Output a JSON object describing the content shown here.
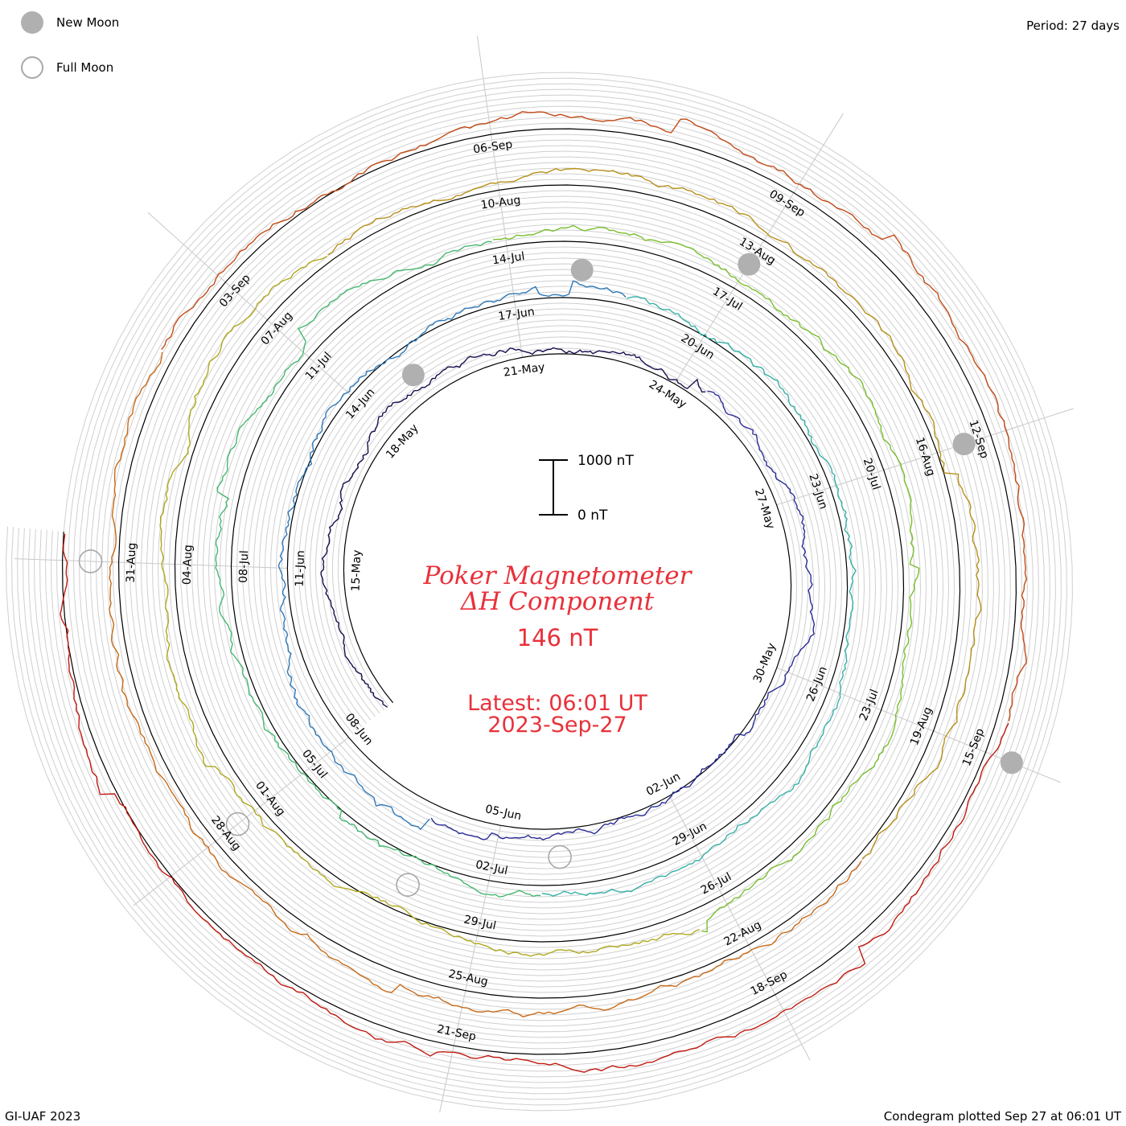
{
  "legend": {
    "new_moon_label": "New Moon",
    "full_moon_label": "Full Moon",
    "new_moon_color": "#b0b0b0",
    "full_moon_color": "#a8a8a8"
  },
  "period_label": "Period: 27 days",
  "title": {
    "line1": "Poker Magnetometer",
    "line2": "ΔH Component",
    "value": "146 nT",
    "latest": "Latest: 06:01 UT",
    "date": "2023-Sep-27",
    "color": "#e8313b"
  },
  "scale_bar": {
    "top_label": "1000 nT",
    "bottom_label": "0 nT"
  },
  "footer": {
    "left": "GI-UAF 2023",
    "right": "Condegram plotted Sep 27 at 06:01 UT"
  },
  "chart_data": {
    "type": "line",
    "subtype": "condegram spiral (one revolution per 27 days, clockwise)",
    "period_days": 27,
    "units": "nT",
    "start_date": "2023-May-12",
    "end": "2023-Sep-27 06:01 UT",
    "current_value_nT": 146,
    "series": [
      {
        "color": "#1a0f50",
        "start": "2023-May-12"
      },
      {
        "color": "#2b2d96",
        "start": "2023-Jun-08"
      },
      {
        "color": "#2f78b8",
        "start": "2023-Jul-05"
      },
      {
        "color": "#36b0a8",
        "start": "2023-Aug-01"
      },
      {
        "color": "#79be2e",
        "start": "2023-Aug-28"
      },
      {
        "color": "#b0a81e",
        "start": "2023-Sep-24"
      }
    ],
    "segment_colors": [
      "#1a0f50",
      "#2b2d96",
      "#2f78b8",
      "#36b0a8",
      "#46b870",
      "#79be2e",
      "#b0a81e",
      "#b8901a",
      "#c86a18",
      "#c24a16",
      "#c01a10"
    ],
    "date_labels": [
      {
        "date": "15-May",
        "day": 3
      },
      {
        "date": "18-May",
        "day": 6
      },
      {
        "date": "21-May",
        "day": 9
      },
      {
        "date": "24-May",
        "day": 12
      },
      {
        "date": "27-May",
        "day": 15
      },
      {
        "date": "30-May",
        "day": 18
      },
      {
        "date": "02-Jun",
        "day": 21
      },
      {
        "date": "05-Jun",
        "day": 24
      },
      {
        "date": "08-Jun",
        "day": 27
      },
      {
        "date": "11-Jun",
        "day": 30
      },
      {
        "date": "14-Jun",
        "day": 33
      },
      {
        "date": "17-Jun",
        "day": 36
      },
      {
        "date": "20-Jun",
        "day": 39
      },
      {
        "date": "23-Jun",
        "day": 42
      },
      {
        "date": "26-Jun",
        "day": 45
      },
      {
        "date": "29-Jun",
        "day": 48
      },
      {
        "date": "02-Jul",
        "day": 51
      },
      {
        "date": "05-Jul",
        "day": 54
      },
      {
        "date": "08-Jul",
        "day": 57
      },
      {
        "date": "11-Jul",
        "day": 60
      },
      {
        "date": "14-Jul",
        "day": 63
      },
      {
        "date": "17-Jul",
        "day": 66
      },
      {
        "date": "20-Jul",
        "day": 69
      },
      {
        "date": "23-Jul",
        "day": 72
      },
      {
        "date": "26-Jul",
        "day": 75
      },
      {
        "date": "29-Jul",
        "day": 78
      },
      {
        "date": "01-Aug",
        "day": 81
      },
      {
        "date": "04-Aug",
        "day": 84
      },
      {
        "date": "07-Aug",
        "day": 87
      },
      {
        "date": "10-Aug",
        "day": 90
      },
      {
        "date": "13-Aug",
        "day": 93
      },
      {
        "date": "16-Aug",
        "day": 96
      },
      {
        "date": "19-Aug",
        "day": 99
      },
      {
        "date": "22-Aug",
        "day": 102
      },
      {
        "date": "25-Aug",
        "day": 105
      },
      {
        "date": "28-Aug",
        "day": 108
      },
      {
        "date": "31-Aug",
        "day": 111
      },
      {
        "date": "03-Sep",
        "day": 114
      },
      {
        "date": "06-Sep",
        "day": 117
      },
      {
        "date": "09-Sep",
        "day": 120
      },
      {
        "date": "12-Sep",
        "day": 123
      },
      {
        "date": "15-Sep",
        "day": 126
      },
      {
        "date": "18-Sep",
        "day": 129
      },
      {
        "date": "21-Sep",
        "day": 132
      }
    ],
    "moon_phases": [
      {
        "phase": "new",
        "date": "2023-May-19"
      },
      {
        "phase": "full",
        "date": "2023-Jun-04"
      },
      {
        "phase": "new",
        "date": "2023-Jun-18"
      },
      {
        "phase": "full",
        "date": "2023-Jul-03"
      },
      {
        "phase": "new",
        "date": "2023-Jul-17"
      },
      {
        "phase": "full",
        "date": "2023-Aug-01"
      },
      {
        "phase": "new",
        "date": "2023-Aug-16"
      },
      {
        "phase": "full",
        "date": "2023-Aug-31"
      },
      {
        "phase": "new",
        "date": "2023-Sep-15"
      }
    ]
  }
}
